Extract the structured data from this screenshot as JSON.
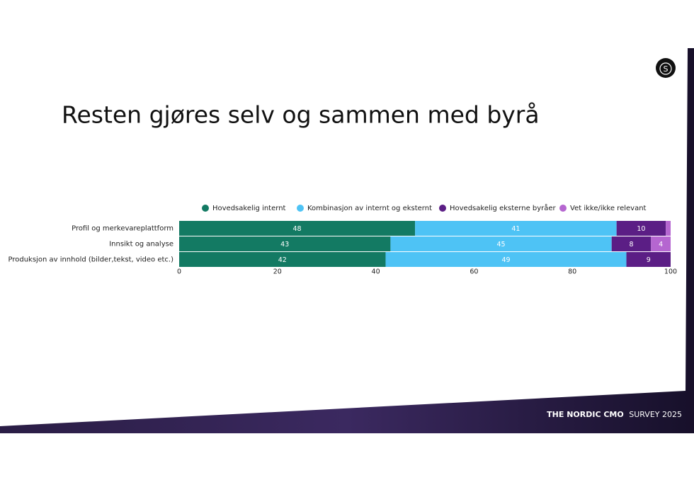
{
  "slide": {
    "title": "Resten gjøres selv og sammen med byrå",
    "logo": "S",
    "footer": {
      "brand": "THE NORDIC CMO",
      "survey": "SURVEY 2025"
    }
  },
  "chart_data": {
    "type": "stacked-bar-horizontal",
    "categories": [
      "Profil og merkevareplattform",
      "Innsikt og analyse",
      "Produksjon av innhold (bilder,tekst, video etc.)"
    ],
    "series": [
      {
        "name": "Hovedsakelig internt",
        "color": "#137a63",
        "values": [
          48,
          43,
          42
        ]
      },
      {
        "name": "Kombinasjon av internt og eksternt",
        "color": "#4ec3f5",
        "values": [
          41,
          45,
          49
        ]
      },
      {
        "name": "Hovedsakelig eksterne byråer",
        "color": "#5b1e85",
        "values": [
          10,
          8,
          9
        ]
      },
      {
        "name": "Vet ikke/ikke relevant",
        "color": "#b566d0",
        "values": [
          1,
          4,
          0
        ]
      }
    ],
    "xlim": [
      0,
      100
    ],
    "xticks": [
      0,
      20,
      40,
      60,
      80,
      100
    ],
    "legend": "top"
  }
}
